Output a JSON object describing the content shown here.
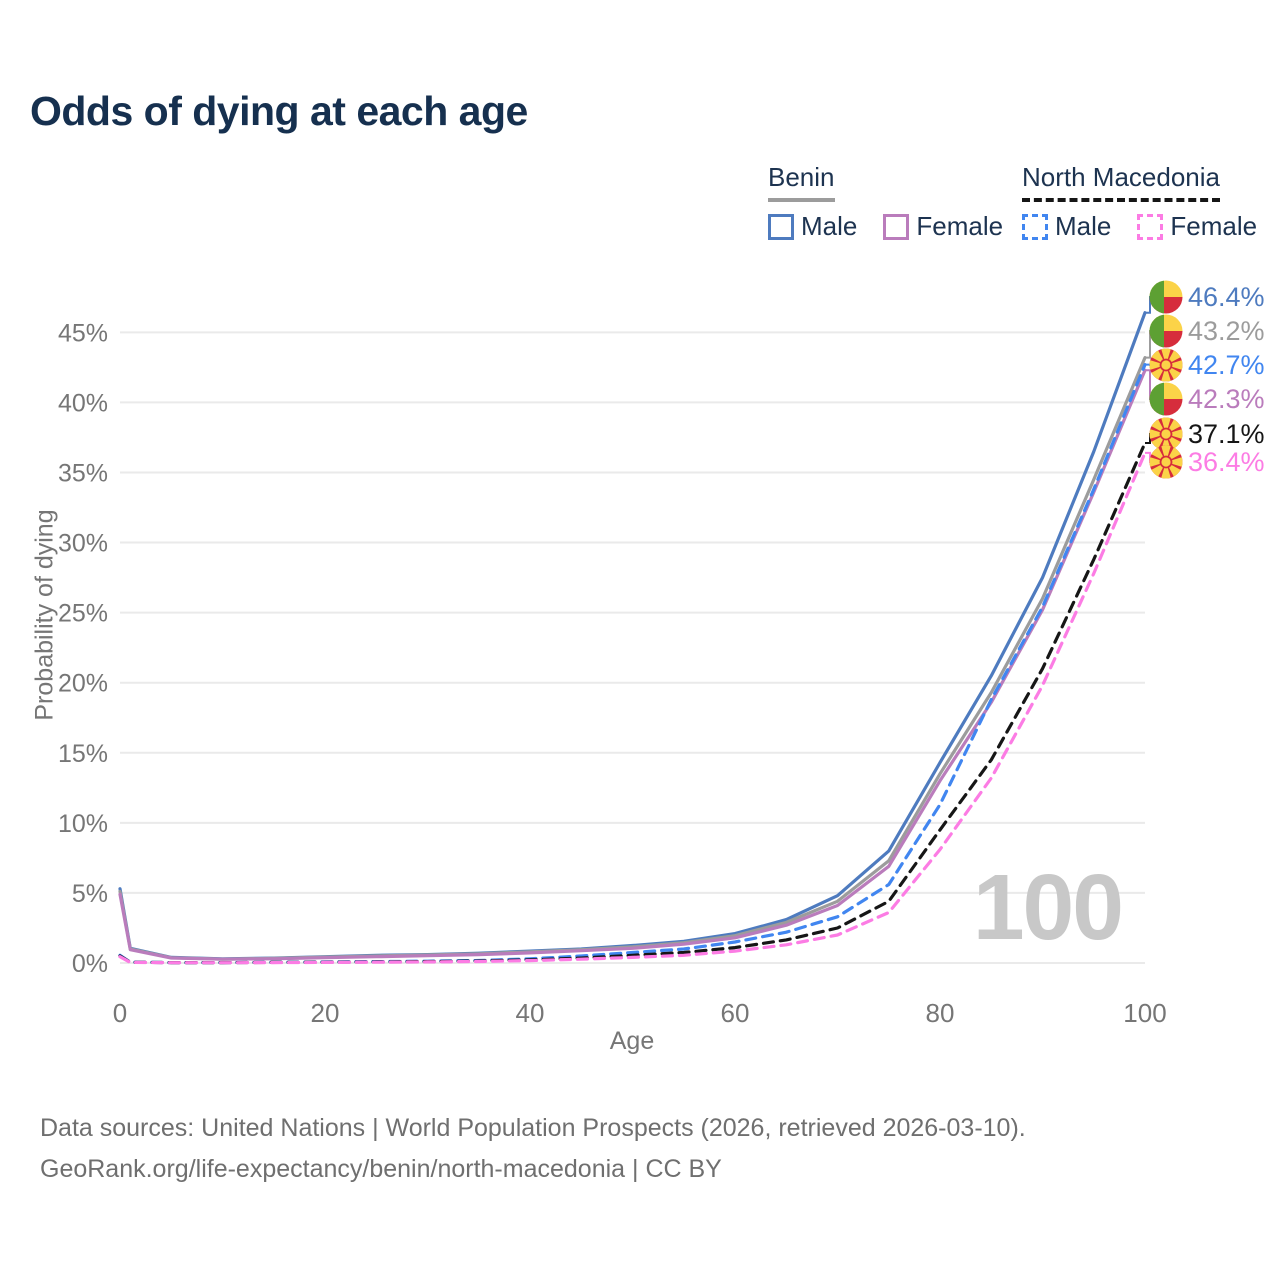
{
  "title": "Odds of dying at each age",
  "legend": {
    "benin": {
      "label": "Benin",
      "male_label": "Male",
      "female_label": "Female",
      "male_color": "#4e7bbf",
      "female_color": "#ba7cbc"
    },
    "north_macedonia": {
      "label": "North Macedonia",
      "male_label": "Male",
      "female_label": "Female",
      "male_color": "#4186f0",
      "female_color": "#fc7ce4"
    }
  },
  "watermark": "100",
  "chart_data": {
    "type": "line",
    "title": "Odds of dying at each age",
    "xlabel": "Age",
    "ylabel": "Probability of dying",
    "xlim": [
      0,
      100
    ],
    "ylim": [
      0,
      47.5
    ],
    "grid": "horizontal",
    "x_ticks": [
      0,
      20,
      40,
      60,
      80,
      100
    ],
    "y_tick_values": [
      0,
      5,
      10,
      15,
      20,
      25,
      30,
      35,
      40,
      45
    ],
    "y_tick_labels": [
      "0%",
      "5%",
      "10%",
      "15%",
      "20%",
      "25%",
      "30%",
      "35%",
      "40%",
      "45%"
    ],
    "ages": [
      0,
      1,
      5,
      10,
      15,
      20,
      25,
      30,
      35,
      40,
      45,
      50,
      55,
      60,
      65,
      70,
      75,
      80,
      85,
      90,
      95,
      100
    ],
    "series": [
      {
        "id": "benin-male",
        "name": "Benin — Male",
        "country": "Benin",
        "color": "#4e7bbf",
        "dash": "solid",
        "end_label": "46.4%",
        "values": [
          5.3,
          1.05,
          0.4,
          0.3,
          0.35,
          0.45,
          0.55,
          0.6,
          0.7,
          0.85,
          1.0,
          1.25,
          1.55,
          2.1,
          3.1,
          4.8,
          8.0,
          14.3,
          20.5,
          27.5,
          36.5,
          46.4
        ]
      },
      {
        "id": "benin-both",
        "name": "Benin — Both sexes",
        "country": "Benin",
        "color": "#9c9c9c",
        "dash": "solid",
        "end_label": "43.2%",
        "values": [
          5.1,
          1.0,
          0.38,
          0.28,
          0.33,
          0.42,
          0.5,
          0.57,
          0.66,
          0.8,
          0.95,
          1.15,
          1.45,
          1.95,
          2.9,
          4.4,
          7.3,
          13.5,
          19.3,
          26.0,
          34.5,
          43.2
        ]
      },
      {
        "id": "benin-female",
        "name": "Benin — Female",
        "country": "Benin",
        "color": "#ba7cbc",
        "dash": "solid",
        "end_label": "42.3%",
        "values": [
          4.9,
          0.95,
          0.36,
          0.27,
          0.3,
          0.38,
          0.45,
          0.52,
          0.6,
          0.72,
          0.88,
          1.05,
          1.35,
          1.8,
          2.7,
          4.1,
          6.9,
          13.0,
          18.6,
          25.2,
          33.6,
          42.3
        ]
      },
      {
        "id": "nm-male",
        "name": "North Macedonia — Male",
        "country": "North Macedonia",
        "color": "#4186f0",
        "dash": "dashed",
        "end_label": "42.7%",
        "values": [
          0.55,
          0.06,
          0.03,
          0.03,
          0.05,
          0.08,
          0.1,
          0.13,
          0.18,
          0.3,
          0.5,
          0.75,
          1.0,
          1.5,
          2.2,
          3.3,
          5.6,
          11.3,
          18.8,
          25.4,
          33.8,
          42.7
        ]
      },
      {
        "id": "nm-both",
        "name": "North Macedonia — Both sexes",
        "country": "North Macedonia",
        "color": "#161616",
        "dash": "dashed",
        "end_label": "37.1%",
        "values": [
          0.5,
          0.05,
          0.03,
          0.03,
          0.04,
          0.06,
          0.08,
          0.1,
          0.14,
          0.22,
          0.35,
          0.55,
          0.75,
          1.1,
          1.65,
          2.5,
          4.4,
          9.5,
          14.5,
          21.0,
          28.8,
          37.1
        ]
      },
      {
        "id": "nm-female",
        "name": "North Macedonia — Female",
        "country": "North Macedonia",
        "color": "#fc7ce4",
        "dash": "dashed",
        "end_label": "36.4%",
        "values": [
          0.45,
          0.04,
          0.02,
          0.02,
          0.03,
          0.04,
          0.06,
          0.08,
          0.11,
          0.17,
          0.27,
          0.4,
          0.55,
          0.85,
          1.3,
          2.0,
          3.6,
          8.1,
          13.2,
          19.8,
          27.8,
          36.4
        ]
      }
    ],
    "legend_position": "top-right"
  },
  "footer": {
    "line1": "Data sources: United Nations | World Population Prospects (2026, retrieved 2026-03-10).",
    "line2": "GeoRank.org/life-expectancy/benin/north-macedonia | CC BY"
  }
}
